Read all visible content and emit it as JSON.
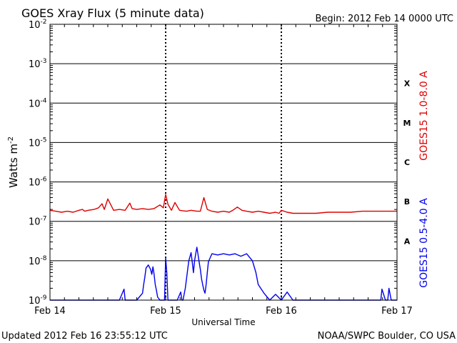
{
  "chart_data": {
    "type": "line",
    "title": "GOES Xray Flux (5 minute data)",
    "begin_label": "Begin:  2012 Feb 14 0000 UTC",
    "ylabel": "Watts m",
    "ylabel_sup": "-2",
    "xlabel": "Universal Time",
    "y_scale": "log",
    "ylim": [
      1e-09,
      0.01
    ],
    "y_ticks": [
      {
        "base": "10",
        "exp": "-2",
        "value": 0.01
      },
      {
        "base": "10",
        "exp": "-3",
        "value": 0.001
      },
      {
        "base": "10",
        "exp": "-4",
        "value": 0.0001
      },
      {
        "base": "10",
        "exp": "-5",
        "value": 1e-05
      },
      {
        "base": "10",
        "exp": "-6",
        "value": 1e-06
      },
      {
        "base": "10",
        "exp": "-7",
        "value": 1e-07
      },
      {
        "base": "10",
        "exp": "-8",
        "value": 1e-08
      },
      {
        "base": "10",
        "exp": "-9",
        "value": 1e-09
      }
    ],
    "xlim": [
      0,
      3
    ],
    "x_ticks": [
      {
        "label": "Feb 14",
        "value": 0
      },
      {
        "label": "Feb 15",
        "value": 1
      },
      {
        "label": "Feb 16",
        "value": 2
      },
      {
        "label": "Feb 17",
        "value": 3
      }
    ],
    "flare_classes": [
      {
        "label": "X",
        "low": 0.0001,
        "high": 0.001
      },
      {
        "label": "M",
        "low": 1e-05,
        "high": 0.0001
      },
      {
        "label": "C",
        "low": 1e-06,
        "high": 1e-05
      },
      {
        "label": "B",
        "low": 1e-07,
        "high": 1e-06
      },
      {
        "label": "A",
        "low": 1e-08,
        "high": 1e-07
      }
    ],
    "grid": true,
    "series": [
      {
        "name": "GOES15 1.0-8.0 A",
        "color": "#dd0000",
        "x": [
          0.0,
          0.05,
          0.1,
          0.15,
          0.2,
          0.25,
          0.28,
          0.3,
          0.33,
          0.38,
          0.42,
          0.45,
          0.47,
          0.5,
          0.55,
          0.6,
          0.65,
          0.69,
          0.71,
          0.75,
          0.8,
          0.85,
          0.9,
          0.95,
          0.98,
          1.0,
          1.02,
          1.05,
          1.08,
          1.12,
          1.18,
          1.22,
          1.27,
          1.3,
          1.33,
          1.36,
          1.4,
          1.45,
          1.5,
          1.55,
          1.58,
          1.62,
          1.66,
          1.7,
          1.75,
          1.8,
          1.85,
          1.9,
          1.95,
          1.98,
          2.0,
          2.05,
          2.1,
          2.2,
          2.3,
          2.4,
          2.5,
          2.6,
          2.7,
          2.8,
          2.9,
          3.0
        ],
        "values": [
          1.9e-07,
          1.8e-07,
          1.7e-07,
          1.8e-07,
          1.7e-07,
          1.9e-07,
          2e-07,
          1.8e-07,
          1.9e-07,
          2e-07,
          2.2e-07,
          2.8e-07,
          2e-07,
          3.7e-07,
          1.9e-07,
          2e-07,
          1.9e-07,
          2.9e-07,
          2.1e-07,
          2e-07,
          2.1e-07,
          2e-07,
          2.1e-07,
          2.6e-07,
          2.2e-07,
          4.8e-07,
          2.7e-07,
          1.9e-07,
          3e-07,
          1.9e-07,
          1.8e-07,
          1.9e-07,
          1.8e-07,
          1.8e-07,
          4e-07,
          2e-07,
          1.8e-07,
          1.7e-07,
          1.8e-07,
          1.7e-07,
          1.9e-07,
          2.3e-07,
          1.9e-07,
          1.8e-07,
          1.7e-07,
          1.8e-07,
          1.7e-07,
          1.6e-07,
          1.7e-07,
          1.6e-07,
          1.9e-07,
          1.7e-07,
          1.6e-07,
          1.6e-07,
          1.6e-07,
          1.7e-07,
          1.7e-07,
          1.7e-07,
          1.8e-07,
          1.8e-07,
          1.8e-07,
          1.8e-07
        ]
      },
      {
        "name": "GOES15 0.5-4.0 A",
        "color": "#0000ee",
        "x": [
          0.0,
          0.3,
          0.6,
          0.64,
          0.65,
          0.67,
          0.7,
          0.75,
          0.8,
          0.81,
          0.82,
          0.83,
          0.85,
          0.87,
          0.88,
          0.89,
          0.9,
          0.91,
          0.92,
          0.93,
          0.95,
          0.99,
          1.0,
          1.01,
          1.02,
          1.08,
          1.1,
          1.13,
          1.14,
          1.15,
          1.17,
          1.2,
          1.22,
          1.23,
          1.24,
          1.25,
          1.26,
          1.27,
          1.28,
          1.29,
          1.3,
          1.31,
          1.32,
          1.33,
          1.34,
          1.35,
          1.36,
          1.37,
          1.4,
          1.45,
          1.5,
          1.55,
          1.6,
          1.65,
          1.7,
          1.75,
          1.78,
          1.8,
          1.85,
          1.9,
          1.95,
          2.0,
          2.05,
          2.1,
          2.4,
          2.8,
          2.86,
          2.87,
          2.9,
          2.92,
          2.93,
          2.95,
          3.0
        ],
        "values": [
          1e-09,
          1e-09,
          1e-09,
          1.9e-09,
          1e-09,
          1e-09,
          1e-09,
          1e-09,
          1.5e-09,
          2.5e-09,
          3.8e-09,
          6.5e-09,
          7.8e-09,
          6e-09,
          4.5e-09,
          7e-09,
          4.5e-09,
          2.5e-09,
          1.8e-09,
          1.2e-09,
          1e-09,
          1e-09,
          1.2e-08,
          5e-09,
          1e-09,
          1e-09,
          1e-09,
          1.6e-09,
          1e-09,
          1e-09,
          2e-09,
          1e-08,
          1.6e-08,
          9e-09,
          5e-09,
          1e-08,
          1.5e-08,
          2.2e-08,
          1.4e-08,
          9e-09,
          6e-09,
          3.5e-09,
          2.5e-09,
          1.8e-09,
          1.5e-09,
          2.5e-09,
          5e-09,
          9.5e-09,
          1.5e-08,
          1.4e-08,
          1.5e-08,
          1.4e-08,
          1.5e-08,
          1.3e-08,
          1.5e-08,
          1e-08,
          5e-09,
          2.5e-09,
          1.5e-09,
          1e-09,
          1.4e-09,
          1e-09,
          1.6e-09,
          1e-09,
          1e-09,
          1e-09,
          1e-09,
          1.9e-09,
          1e-09,
          1e-09,
          2e-09,
          1e-09,
          1e-09
        ]
      }
    ]
  },
  "footer": {
    "updated": "Updated 2012 Feb 16 23:55:12 UTC",
    "credit": "NOAA/SWPC Boulder, CO USA"
  }
}
